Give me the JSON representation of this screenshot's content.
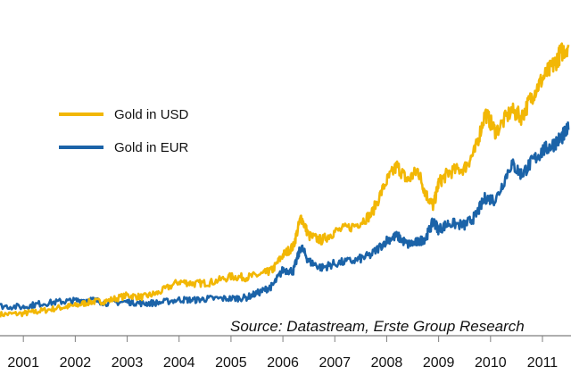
{
  "chart_data": {
    "type": "line",
    "title": "",
    "xlabel": "",
    "ylabel": "",
    "x_ticks": [
      "2001",
      "2002",
      "2003",
      "2004",
      "2005",
      "2006",
      "2007",
      "2008",
      "2009",
      "2010",
      "2011"
    ],
    "xlim": [
      2000.55,
      2011.55
    ],
    "ylim": [
      150,
      1500
    ],
    "grid": false,
    "legend": "top-left",
    "source": "Source: Datastream, Erste Group Research",
    "series": [
      {
        "name": "Gold in USD",
        "color": "#F2B705",
        "points": [
          [
            2000.55,
            250
          ],
          [
            2001.0,
            255
          ],
          [
            2001.3,
            265
          ],
          [
            2001.7,
            282
          ],
          [
            2002.0,
            292
          ],
          [
            2002.3,
            310
          ],
          [
            2002.6,
            313
          ],
          [
            2003.0,
            340
          ],
          [
            2003.3,
            332
          ],
          [
            2003.6,
            352
          ],
          [
            2004.0,
            405
          ],
          [
            2004.3,
            395
          ],
          [
            2004.6,
            400
          ],
          [
            2005.0,
            428
          ],
          [
            2005.3,
            425
          ],
          [
            2005.6,
            440
          ],
          [
            2005.8,
            460
          ],
          [
            2006.0,
            530
          ],
          [
            2006.2,
            570
          ],
          [
            2006.35,
            710
          ],
          [
            2006.5,
            620
          ],
          [
            2006.75,
            600
          ],
          [
            2007.0,
            640
          ],
          [
            2007.4,
            670
          ],
          [
            2007.7,
            720
          ],
          [
            2008.0,
            880
          ],
          [
            2008.2,
            950
          ],
          [
            2008.4,
            880
          ],
          [
            2008.6,
            930
          ],
          [
            2008.75,
            820
          ],
          [
            2008.9,
            760
          ],
          [
            2009.0,
            870
          ],
          [
            2009.2,
            920
          ],
          [
            2009.5,
            940
          ],
          [
            2009.7,
            1020
          ],
          [
            2009.9,
            1200
          ],
          [
            2010.1,
            1110
          ],
          [
            2010.4,
            1210
          ],
          [
            2010.6,
            1180
          ],
          [
            2010.8,
            1280
          ],
          [
            2011.0,
            1360
          ],
          [
            2011.2,
            1420
          ],
          [
            2011.35,
            1480
          ],
          [
            2011.5,
            1520
          ]
        ]
      },
      {
        "name": "Gold in EUR",
        "color": "#1B63A8",
        "points": [
          [
            2000.55,
            290
          ],
          [
            2001.0,
            285
          ],
          [
            2001.3,
            300
          ],
          [
            2001.7,
            310
          ],
          [
            2002.0,
            315
          ],
          [
            2002.3,
            320
          ],
          [
            2002.6,
            305
          ],
          [
            2003.0,
            310
          ],
          [
            2003.3,
            302
          ],
          [
            2003.6,
            305
          ],
          [
            2004.0,
            320
          ],
          [
            2004.3,
            318
          ],
          [
            2004.6,
            325
          ],
          [
            2005.0,
            325
          ],
          [
            2005.3,
            330
          ],
          [
            2005.6,
            360
          ],
          [
            2005.8,
            385
          ],
          [
            2006.0,
            460
          ],
          [
            2006.2,
            455
          ],
          [
            2006.35,
            570
          ],
          [
            2006.5,
            500
          ],
          [
            2006.75,
            470
          ],
          [
            2007.0,
            490
          ],
          [
            2007.4,
            505
          ],
          [
            2007.7,
            530
          ],
          [
            2008.0,
            600
          ],
          [
            2008.2,
            620
          ],
          [
            2008.4,
            580
          ],
          [
            2008.6,
            590
          ],
          [
            2008.75,
            610
          ],
          [
            2008.9,
            690
          ],
          [
            2009.0,
            650
          ],
          [
            2009.2,
            680
          ],
          [
            2009.5,
            670
          ],
          [
            2009.7,
            710
          ],
          [
            2009.9,
            800
          ],
          [
            2010.1,
            790
          ],
          [
            2010.4,
            960
          ],
          [
            2010.6,
            910
          ],
          [
            2010.8,
            970
          ],
          [
            2011.0,
            1020
          ],
          [
            2011.2,
            1050
          ],
          [
            2011.35,
            1080
          ],
          [
            2011.5,
            1120
          ]
        ]
      }
    ]
  }
}
